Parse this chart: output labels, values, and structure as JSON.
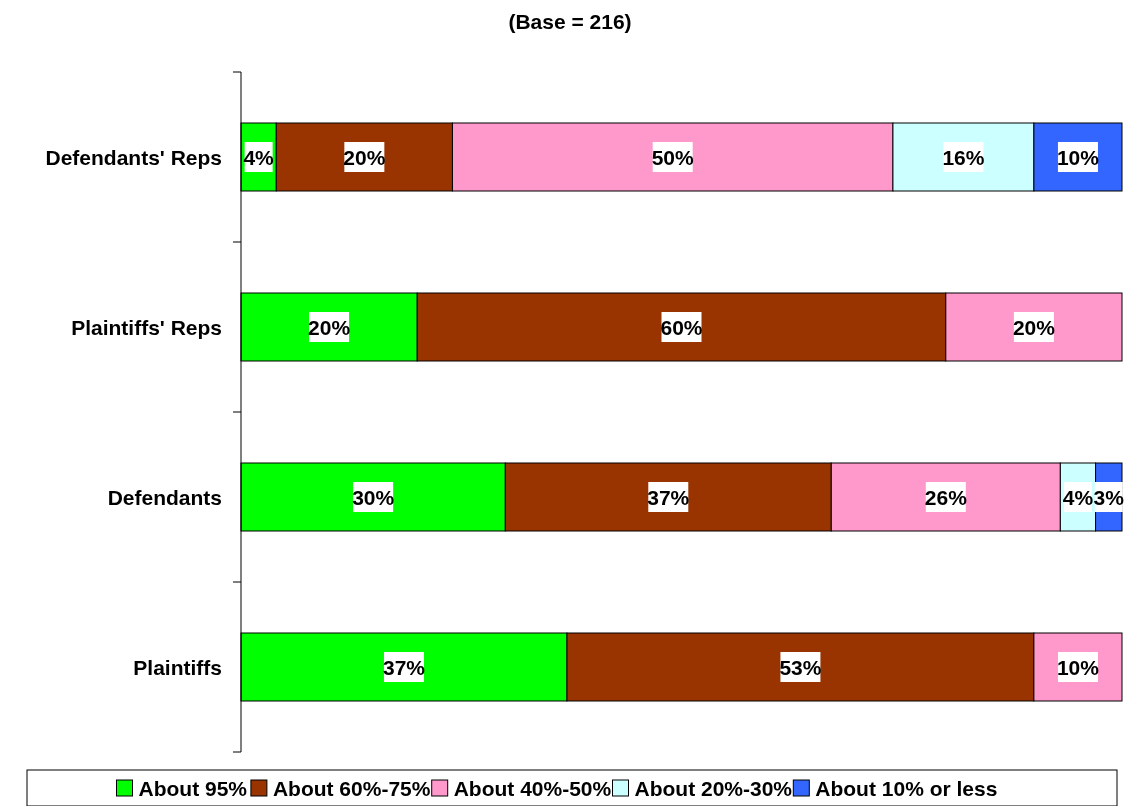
{
  "chart_data": {
    "type": "bar",
    "title": "(Base = 216)",
    "orientation": "horizontal",
    "stacked": true,
    "legend": "bottom",
    "categories": [
      "Defendants' Reps",
      "Plaintiffs' Reps",
      "Defendants",
      "Plaintiffs"
    ],
    "series": [
      {
        "name": "About 95%",
        "color": "#00ff00",
        "values": [
          4,
          20,
          30,
          37
        ],
        "value_labels": [
          "4%",
          "20%",
          "30%",
          "37%"
        ]
      },
      {
        "name": "About 60%-75%",
        "color": "#993300",
        "values": [
          20,
          60,
          37,
          53
        ],
        "value_labels": [
          "20%",
          "60%",
          "37%",
          "53%"
        ]
      },
      {
        "name": "About 40%-50%",
        "color": "#ff99cc",
        "values": [
          50,
          20,
          26,
          10
        ],
        "value_labels": [
          "50%",
          "20%",
          "26%",
          "10%"
        ]
      },
      {
        "name": "About 20%-30%",
        "color": "#ccffff",
        "values": [
          16,
          null,
          4,
          null
        ],
        "value_labels": [
          "16%",
          null,
          "4%",
          null
        ]
      },
      {
        "name": "About 10% or less",
        "color": "#3366ff",
        "values": [
          10,
          null,
          3,
          null
        ],
        "value_labels": [
          "10%",
          null,
          "3%",
          null
        ]
      }
    ]
  }
}
